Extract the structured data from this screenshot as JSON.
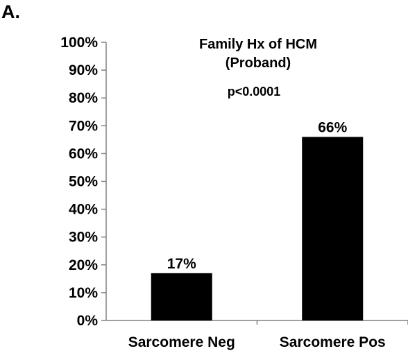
{
  "panel_label": "A.",
  "chart_data": {
    "type": "bar",
    "title": "Family Hx of HCM",
    "subtitle": "(Proband)",
    "annotation": "p<0.0001",
    "categories": [
      "Sarcomere Neg",
      "Sarcomere Pos"
    ],
    "values": [
      17,
      66
    ],
    "data_labels": [
      "17%",
      "66%"
    ],
    "ylim": [
      0,
      100
    ],
    "yticks": [
      0,
      10,
      20,
      30,
      40,
      50,
      60,
      70,
      80,
      90,
      100
    ],
    "ytick_labels": [
      "0%",
      "10%",
      "20%",
      "30%",
      "40%",
      "50%",
      "60%",
      "70%",
      "80%",
      "90%",
      "100%"
    ],
    "xlabel": "",
    "ylabel": "",
    "grid": false,
    "bar_color": "#000000"
  }
}
